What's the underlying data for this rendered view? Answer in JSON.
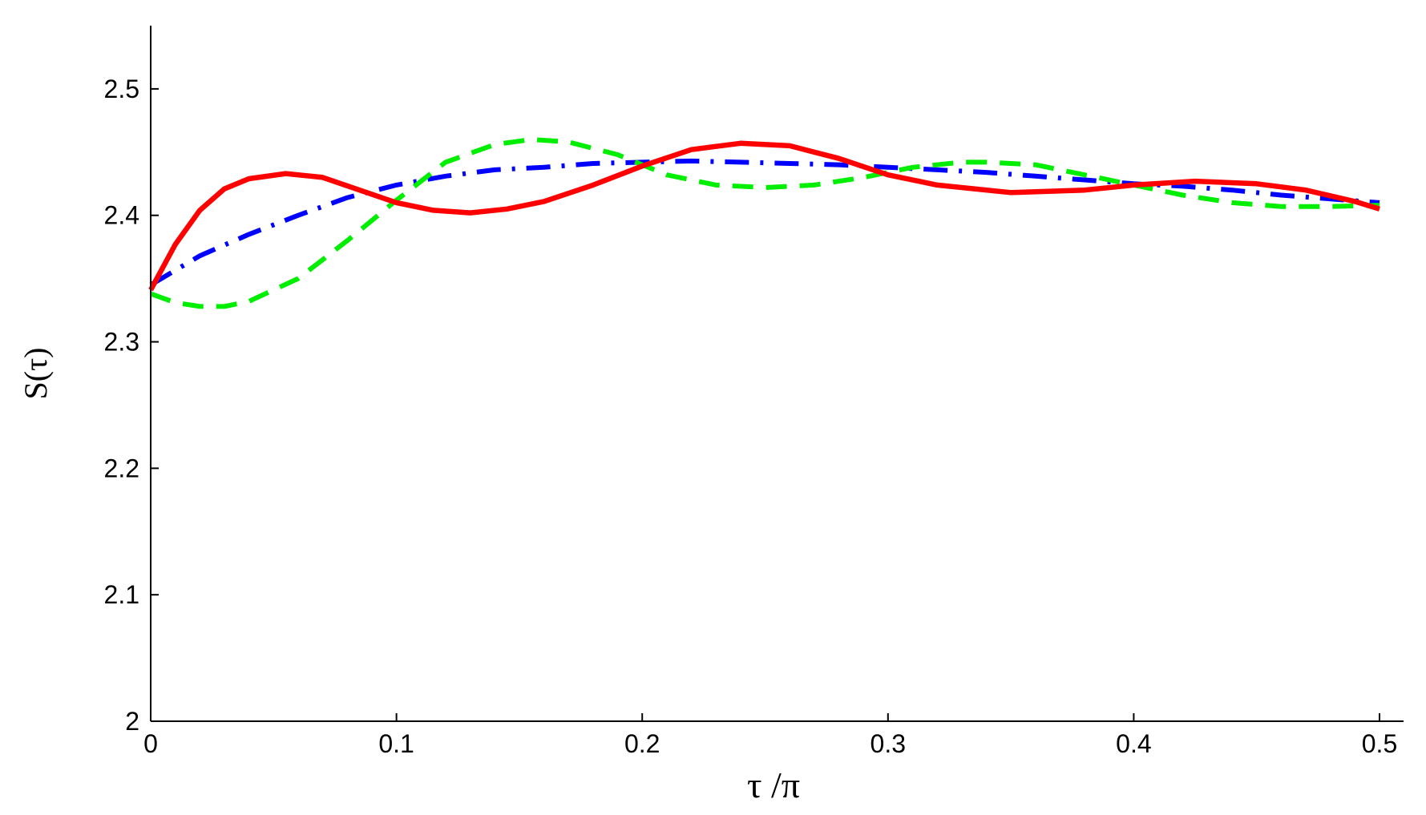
{
  "chart_data": {
    "type": "line",
    "title": "",
    "xlabel": "τ /π",
    "ylabel": "S(τ)",
    "xlim": [
      0,
      0.5
    ],
    "ylim": [
      2,
      2.55
    ],
    "x_ticks": [
      0,
      0.1,
      0.2,
      0.3,
      0.4,
      0.5
    ],
    "x_tick_labels": [
      "0",
      "0.1",
      "0.2",
      "0.3",
      "0.4",
      "0.5"
    ],
    "y_ticks": [
      2,
      2.1,
      2.2,
      2.3,
      2.4,
      2.5
    ],
    "y_tick_labels": [
      "2",
      "2.1",
      "2.2",
      "2.3",
      "2.4",
      "2.5"
    ],
    "grid": false,
    "legend": "none",
    "series": [
      {
        "color": "#0000ff",
        "style": "dash-dot",
        "x": [
          0,
          0.02,
          0.04,
          0.06,
          0.08,
          0.1,
          0.12,
          0.14,
          0.16,
          0.18,
          0.2,
          0.22,
          0.24,
          0.26,
          0.28,
          0.3,
          0.32,
          0.34,
          0.36,
          0.38,
          0.4,
          0.42,
          0.44,
          0.46,
          0.48,
          0.5
        ],
        "y": [
          2.345,
          2.368,
          2.385,
          2.4,
          2.414,
          2.424,
          2.431,
          2.436,
          2.438,
          2.441,
          2.442,
          2.443,
          2.442,
          2.441,
          2.44,
          2.438,
          2.436,
          2.434,
          2.431,
          2.428,
          2.425,
          2.423,
          2.42,
          2.416,
          2.413,
          2.41
        ]
      },
      {
        "color": "#00ee00",
        "style": "dashed",
        "x": [
          0,
          0.01,
          0.02,
          0.03,
          0.04,
          0.06,
          0.08,
          0.1,
          0.12,
          0.14,
          0.155,
          0.17,
          0.19,
          0.21,
          0.23,
          0.25,
          0.27,
          0.29,
          0.31,
          0.33,
          0.34,
          0.36,
          0.38,
          0.4,
          0.42,
          0.44,
          0.46,
          0.48,
          0.5
        ],
        "y": [
          2.338,
          2.331,
          2.328,
          2.328,
          2.332,
          2.35,
          2.38,
          2.412,
          2.442,
          2.456,
          2.46,
          2.458,
          2.448,
          2.432,
          2.424,
          2.422,
          2.424,
          2.43,
          2.438,
          2.442,
          2.442,
          2.44,
          2.432,
          2.424,
          2.416,
          2.41,
          2.407,
          2.407,
          2.408
        ]
      },
      {
        "color": "#ff0000",
        "style": "solid",
        "x": [
          0,
          0.01,
          0.02,
          0.03,
          0.04,
          0.055,
          0.07,
          0.085,
          0.1,
          0.115,
          0.13,
          0.145,
          0.16,
          0.18,
          0.2,
          0.22,
          0.24,
          0.26,
          0.28,
          0.3,
          0.32,
          0.35,
          0.38,
          0.4,
          0.425,
          0.45,
          0.47,
          0.49,
          0.5
        ],
        "y": [
          2.341,
          2.377,
          2.404,
          2.421,
          2.429,
          2.433,
          2.43,
          2.42,
          2.41,
          2.404,
          2.402,
          2.405,
          2.411,
          2.424,
          2.439,
          2.452,
          2.457,
          2.455,
          2.445,
          2.432,
          2.424,
          2.418,
          2.42,
          2.424,
          2.427,
          2.425,
          2.42,
          2.411,
          2.405
        ]
      }
    ]
  }
}
